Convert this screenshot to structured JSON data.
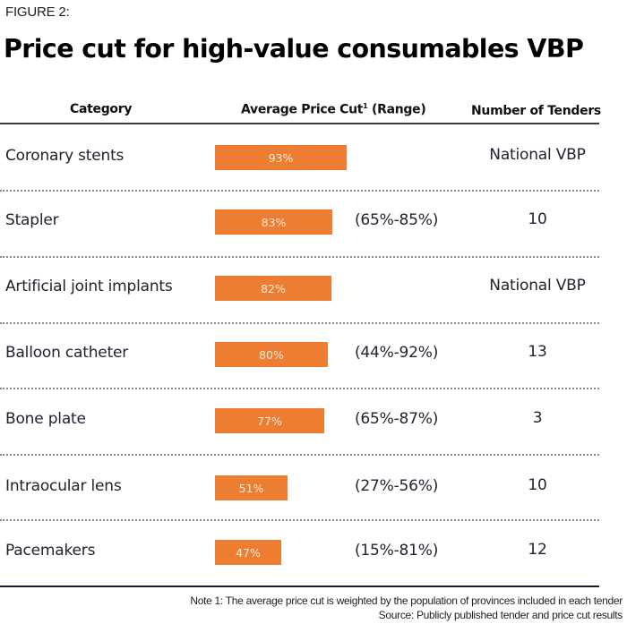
{
  "figure_label": "FIGURE 2:",
  "title": "Price cut for high-value consumables VBP",
  "headers": {
    "category": "Category",
    "avg_price_cut": "Average Price Cut",
    "avg_price_cut_sup": "1",
    "avg_price_cut_suffix": " (Range)",
    "tenders": "Number of Tenders"
  },
  "colors": {
    "bar": "#ed7d31"
  },
  "chart_data": {
    "type": "bar",
    "orientation": "horizontal",
    "title": "Price cut for high-value consumables VBP",
    "xlabel": "Average Price Cut (Range)",
    "ylabel": "Category",
    "xlim": [
      0,
      100
    ],
    "grid": false,
    "categories": [
      "Coronary stents",
      "Stapler",
      "Artificial joint implants",
      "Balloon catheter",
      "Bone plate",
      "Intraocular lens",
      "Pacemakers"
    ],
    "values": [
      93,
      83,
      82,
      80,
      77,
      51,
      47
    ],
    "value_labels": [
      "93%",
      "83%",
      "82%",
      "80%",
      "77%",
      "51%",
      "47%"
    ],
    "ranges": [
      "",
      "(65%-85%)",
      "",
      "(44%-92%)",
      "(65%-87%)",
      "(27%-56%)",
      "(15%-81%)"
    ],
    "tenders": [
      "National VBP",
      "10",
      "National VBP",
      "13",
      "3",
      "10",
      "12"
    ]
  },
  "notes": {
    "note1": "Note 1: The average price cut is weighted by the population of provinces included in each tender",
    "source": "Source: Publicly published tender and price cut results"
  }
}
